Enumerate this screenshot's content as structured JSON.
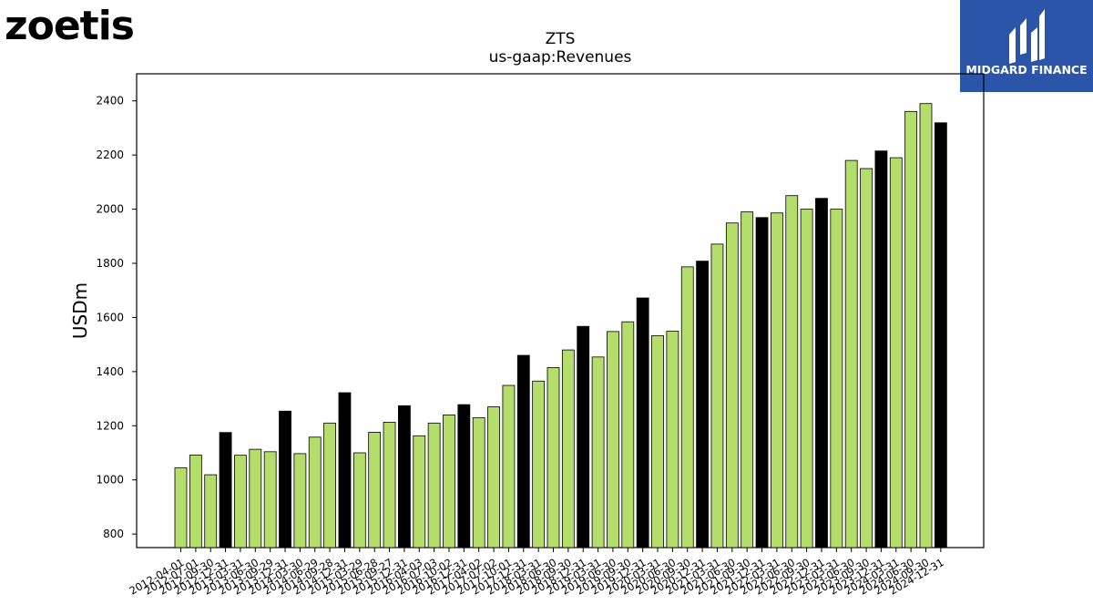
{
  "brand": {
    "left_logo": "zoetis",
    "right_logo": "MIDGARD FINANCE",
    "right_logo_color": "#2a55a8"
  },
  "colors": {
    "bar_normal": "#b5dd6b",
    "bar_yearend": "#000000",
    "bar_edge": "#000000"
  },
  "chart_data": {
    "type": "bar",
    "title": "ZTS",
    "subtitle": "us-gaap:Revenues",
    "xlabel": "",
    "ylabel": "USDm",
    "ylim": [
      750,
      2500
    ],
    "yticks": [
      800,
      1000,
      1200,
      1400,
      1600,
      1800,
      2000,
      2200,
      2400
    ],
    "grid": false,
    "categories": [
      "2012-04-01",
      "2012-07-01",
      "2012-09-30",
      "2012-12-31",
      "2013-03-31",
      "2013-06-30",
      "2013-09-29",
      "2013-12-31",
      "2014-03-30",
      "2014-06-29",
      "2014-09-28",
      "2014-12-31",
      "2015-03-29",
      "2015-06-28",
      "2015-09-27",
      "2015-12-31",
      "2016-04-03",
      "2016-07-03",
      "2016-10-02",
      "2016-12-31",
      "2017-04-02",
      "2017-07-02",
      "2017-10-01",
      "2017-12-31",
      "2018-03-31",
      "2018-06-30",
      "2018-09-30",
      "2018-12-31",
      "2019-03-31",
      "2019-06-30",
      "2019-09-30",
      "2019-12-31",
      "2020-03-31",
      "2020-06-30",
      "2020-09-30",
      "2020-12-31",
      "2021-03-31",
      "2021-06-30",
      "2021-09-30",
      "2021-12-31",
      "2022-03-31",
      "2022-06-30",
      "2022-09-30",
      "2022-12-31",
      "2023-03-31",
      "2023-06-30",
      "2023-09-30",
      "2023-12-31",
      "2024-03-31",
      "2024-06-30",
      "2024-09-30",
      "2024-12-31"
    ],
    "values": [
      1045,
      1092,
      1019,
      1175,
      1091,
      1113,
      1104,
      1254,
      1097,
      1158,
      1210,
      1322,
      1100,
      1176,
      1213,
      1274,
      1163,
      1210,
      1240,
      1278,
      1230,
      1270,
      1349,
      1460,
      1365,
      1415,
      1480,
      1567,
      1454,
      1548,
      1584,
      1672,
      1533,
      1549,
      1787,
      1808,
      1871,
      1949,
      1990,
      1969,
      1986,
      2050,
      2000,
      2040,
      2000,
      2180,
      2150,
      2215,
      2190,
      2361,
      2390,
      2319
    ],
    "highlight_categories": [
      "2012-12-31",
      "2013-12-31",
      "2014-12-31",
      "2015-12-31",
      "2016-12-31",
      "2017-12-31",
      "2018-12-31",
      "2019-12-31",
      "2020-12-31",
      "2021-12-31",
      "2022-12-31",
      "2023-12-31",
      "2024-12-31"
    ]
  }
}
